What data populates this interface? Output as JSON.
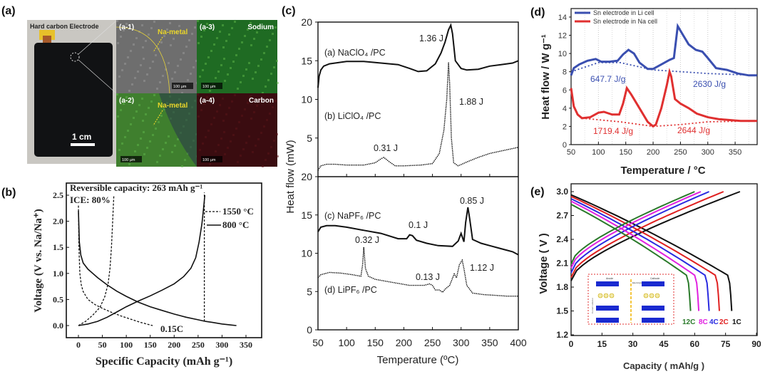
{
  "panel_labels": {
    "a": "(a)",
    "b": "(b)",
    "c": "(c)",
    "d": "(d)",
    "e": "(e)"
  },
  "panel_a": {
    "photo_title": "Hard carbon Electrode",
    "photo_scale": "1 cm",
    "tiles": [
      {
        "label": "(a-1)",
        "title": "",
        "marker": "Na-metal",
        "scale": "100 µm",
        "tone": "#6e6e6e"
      },
      {
        "label": "(a-3)",
        "title": "Sodium",
        "marker": "",
        "scale": "100 µm",
        "tone": "#1f6b23"
      },
      {
        "label": "(a-2)",
        "title": "",
        "marker": "Na-metal",
        "scale": "100 µm",
        "tone": "#3f7f2e"
      },
      {
        "label": "(a-4)",
        "title": "Carbon",
        "marker": "",
        "scale": "100 µm",
        "tone": "#3a0c10"
      }
    ]
  },
  "chart_data": [
    {
      "id": "b",
      "type": "line",
      "title": "",
      "xlabel": "Specific Capacity (mAh g⁻¹)",
      "ylabel": "Voltage (V vs. Na/Na⁺)",
      "xlim": [
        -20,
        385
      ],
      "ylim": [
        -0.25,
        2.75
      ],
      "xticks": [
        0,
        50,
        100,
        150,
        200,
        250,
        300,
        350
      ],
      "yticks": [
        0.0,
        0.5,
        1.0,
        1.5,
        2.0,
        2.5
      ],
      "annotations": [
        "Reversible capacity: 263 mAh g⁻¹",
        "ICE: 80%",
        "0.15C"
      ],
      "legend": [
        "1550 °C",
        "800 °C"
      ],
      "series": [
        {
          "name": "800 °C discharge",
          "style": "solid",
          "x": [
            0,
            2,
            5,
            10,
            20,
            40,
            60,
            80,
            100,
            125,
            150,
            175,
            200,
            225,
            250,
            265,
            280,
            300,
            320,
            330
          ],
          "y": [
            2.2,
            1.6,
            1.35,
            1.2,
            1.08,
            0.92,
            0.78,
            0.66,
            0.56,
            0.45,
            0.36,
            0.29,
            0.22,
            0.16,
            0.11,
            0.08,
            0.06,
            0.03,
            0.01,
            0.0
          ]
        },
        {
          "name": "800 °C charge",
          "style": "solid",
          "x": [
            0,
            20,
            40,
            60,
            80,
            100,
            125,
            150,
            175,
            200,
            220,
            235,
            245,
            252,
            258,
            262,
            264
          ],
          "y": [
            0.0,
            0.03,
            0.08,
            0.16,
            0.26,
            0.36,
            0.47,
            0.57,
            0.68,
            0.8,
            0.94,
            1.1,
            1.3,
            1.6,
            1.95,
            2.3,
            2.5
          ]
        },
        {
          "name": "1550 °C discharge",
          "style": "dashed",
          "x": [
            0,
            1,
            3,
            6,
            10,
            20,
            35,
            50,
            70,
            90,
            110,
            130,
            155
          ],
          "y": [
            2.3,
            1.5,
            1.0,
            0.78,
            0.65,
            0.5,
            0.4,
            0.33,
            0.25,
            0.18,
            0.12,
            0.06,
            0.0
          ]
        },
        {
          "name": "1550 °C charge",
          "style": "dashed",
          "x": [
            0,
            15,
            30,
            45,
            55,
            62,
            66,
            69,
            71,
            73,
            74
          ],
          "y": [
            0.0,
            0.08,
            0.2,
            0.35,
            0.55,
            0.8,
            1.1,
            1.5,
            1.9,
            2.3,
            2.5
          ]
        },
        {
          "name": "1550 °C vertical",
          "style": "dashed",
          "x": [
            263,
            263
          ],
          "y": [
            0.08,
            2.55
          ]
        }
      ]
    },
    {
      "id": "c",
      "type": "line",
      "title": "",
      "xlabel": "Temperature (ºC)",
      "ylabel": "Heat flow (mW)",
      "xlim": [
        50,
        400
      ],
      "xticks": [
        50,
        100,
        150,
        200,
        250,
        300,
        350,
        400
      ],
      "subplots": [
        {
          "ylim": [
            0,
            20
          ],
          "yticks": [
            5,
            10,
            15,
            20
          ],
          "series": [
            {
              "name": "(a) NaClO₄ /PC",
              "style": "solid",
              "x": [
                50,
                52,
                55,
                60,
                70,
                80,
                100,
                130,
                160,
                190,
                210,
                225,
                240,
                255,
                265,
                272,
                278,
                282,
                285,
                290,
                300,
                310,
                330,
                350,
                370,
                390,
                400
              ],
              "y": [
                11.5,
                13.0,
                13.8,
                14.3,
                14.6,
                14.7,
                14.9,
                14.9,
                14.7,
                14.5,
                14.0,
                13.6,
                13.7,
                14.6,
                16.0,
                17.4,
                19.0,
                19.6,
                18.5,
                15.0,
                14.0,
                13.8,
                13.9,
                14.3,
                14.5,
                14.7,
                15.0
              ]
            },
            {
              "name": "(b) LiClO₄ /PC",
              "style": "dotted",
              "x": [
                50,
                55,
                65,
                80,
                100,
                130,
                150,
                160,
                165,
                175,
                185,
                200,
                230,
                250,
                262,
                270,
                275,
                278,
                280,
                283,
                287,
                295,
                310,
                330,
                350,
                375,
                400
              ],
              "y": [
                0.8,
                1.4,
                1.6,
                1.6,
                1.5,
                1.5,
                1.8,
                2.3,
                2.5,
                1.9,
                1.4,
                1.4,
                1.5,
                1.7,
                3.0,
                6.0,
                10.0,
                14.8,
                12.0,
                5.0,
                1.8,
                1.4,
                1.9,
                2.5,
                3.0,
                3.4,
                3.8
              ]
            }
          ],
          "annotations": [
            "1.36 J",
            "1.88 J",
            "0.31 J"
          ]
        },
        {
          "ylim": [
            0,
            20
          ],
          "yticks": [
            0,
            5,
            10,
            15,
            20
          ],
          "series": [
            {
              "name": "(c) NaPF₆ /PC",
              "style": "solid",
              "x": [
                50,
                55,
                65,
                80,
                100,
                130,
                160,
                190,
                205,
                210,
                215,
                222,
                240,
                260,
                285,
                295,
                300,
                305,
                308,
                312,
                315,
                320,
                335,
                350,
                370,
                390,
                400
              ],
              "y": [
                12.8,
                13.4,
                13.6,
                13.6,
                13.4,
                13.0,
                12.6,
                11.9,
                11.9,
                12.4,
                12.3,
                11.7,
                11.3,
                11.0,
                10.9,
                11.6,
                12.6,
                11.5,
                14.0,
                16.0,
                14.5,
                11.8,
                11.3,
                11.0,
                10.6,
                10.2,
                9.8
              ]
            },
            {
              "name": "(d) LiPF₆ /PC",
              "style": "dotted",
              "x": [
                50,
                55,
                70,
                90,
                110,
                125,
                128,
                130,
                133,
                138,
                150,
                180,
                210,
                235,
                245,
                250,
                255,
                262,
                268,
                272,
                280,
                288,
                292,
                297,
                302,
                305,
                310,
                320,
                340,
                360,
                380,
                400
              ],
              "y": [
                6.8,
                7.2,
                7.5,
                7.4,
                7.2,
                7.0,
                8.5,
                10.8,
                8.0,
                7.0,
                6.6,
                6.2,
                5.8,
                5.8,
                6.0,
                5.8,
                5.2,
                5.2,
                4.9,
                5.3,
                5.8,
                7.3,
                6.8,
                8.5,
                9.1,
                8.0,
                5.8,
                4.8,
                4.6,
                4.5,
                4.4,
                4.4
              ]
            }
          ],
          "annotations": [
            "0.85 J",
            "0.1 J",
            "0.32 J",
            "0.13 J",
            "1.12 J"
          ]
        }
      ]
    },
    {
      "id": "d",
      "type": "line",
      "title": "",
      "xlabel": "Temperature / °C",
      "ylabel": "Heat flow / W g⁻¹",
      "xlim": [
        50,
        390
      ],
      "ylim": [
        0,
        15
      ],
      "xticks": [
        50,
        100,
        150,
        200,
        250,
        300,
        350
      ],
      "yticks": [
        0,
        2,
        4,
        6,
        8,
        10,
        12,
        14
      ],
      "grid": "vertical dotted",
      "legend_position": "top-left",
      "legend": [
        "Sn electrode in Li cell",
        "Sn electrode in Na cell"
      ],
      "series": [
        {
          "name": "Sn electrode in Li cell",
          "color": "#3a4fb0",
          "style": "solid",
          "x": [
            50,
            55,
            65,
            80,
            95,
            105,
            120,
            135,
            145,
            155,
            165,
            175,
            190,
            200,
            215,
            230,
            238,
            245,
            255,
            265,
            278,
            290,
            300,
            315,
            335,
            355,
            375,
            390
          ],
          "y": [
            7.6,
            8.4,
            8.8,
            9.2,
            9.4,
            9.1,
            9.1,
            9.2,
            9.9,
            10.4,
            10.0,
            9.0,
            8.3,
            8.3,
            8.8,
            9.3,
            9.5,
            13.0,
            12.0,
            11.0,
            10.4,
            10.2,
            9.5,
            8.4,
            8.2,
            7.8,
            7.6,
            7.6
          ]
        },
        {
          "name": "Li baseline",
          "color": "#3a4fb0",
          "style": "dotted",
          "x": [
            50,
            100,
            140,
            200,
            300,
            390
          ],
          "y": [
            8.0,
            9.0,
            9.0,
            8.2,
            7.8,
            7.6
          ]
        },
        {
          "name": "Sn electrode in Na cell",
          "color": "#e03030",
          "style": "solid",
          "x": [
            50,
            55,
            62,
            70,
            85,
            100,
            110,
            125,
            138,
            145,
            152,
            160,
            175,
            190,
            200,
            205,
            215,
            225,
            230,
            233,
            240,
            250,
            265,
            280,
            300,
            320,
            340,
            360,
            390
          ],
          "y": [
            6.2,
            4.2,
            3.3,
            2.9,
            3.0,
            3.5,
            3.6,
            3.3,
            3.3,
            4.5,
            6.2,
            5.5,
            4.0,
            2.5,
            2.0,
            2.2,
            4.0,
            6.5,
            8.0,
            7.5,
            5.0,
            4.5,
            4.0,
            3.4,
            3.0,
            2.8,
            2.7,
            2.6,
            2.6
          ]
        },
        {
          "name": "Na baseline",
          "color": "#e03030",
          "style": "dotted",
          "x": [
            70,
            140,
            200,
            250,
            300,
            390
          ],
          "y": [
            2.9,
            2.5,
            2.0,
            2.2,
            2.5,
            2.6
          ]
        }
      ],
      "annotations": [
        "647.7 J/g",
        "2630 J/g",
        "1719.4 J/g",
        "2644 J/g"
      ]
    },
    {
      "id": "e",
      "type": "line",
      "title": "",
      "xlabel": "Capacity ( mAh/g )",
      "ylabel": "Voltage ( V )",
      "xlim": [
        0,
        90
      ],
      "ylim": [
        1.2,
        3.1
      ],
      "xticks": [
        0,
        15,
        30,
        45,
        60,
        75,
        90
      ],
      "yticks": [
        1.2,
        1.5,
        1.8,
        2.1,
        2.4,
        2.7,
        3.0
      ],
      "legend": [
        "12C",
        "8C",
        "4C",
        "2C",
        "1C"
      ],
      "series": [
        {
          "name": "1C",
          "color": "#111111",
          "charge_end": 82,
          "charge_start_v": 1.88,
          "discharge_start_v": 2.96,
          "discharge_end": 78
        },
        {
          "name": "2C",
          "color": "#e02020",
          "charge_end": 74,
          "charge_start_v": 1.92,
          "discharge_start_v": 2.94,
          "discharge_end": 72
        },
        {
          "name": "4C",
          "color": "#2a2ae0",
          "charge_end": 67,
          "charge_start_v": 1.98,
          "discharge_start_v": 2.91,
          "discharge_end": 67
        },
        {
          "name": "8C",
          "color": "#e020e0",
          "charge_end": 63,
          "charge_start_v": 2.04,
          "discharge_start_v": 2.88,
          "discharge_end": 62
        },
        {
          "name": "12C",
          "color": "#2a7a2a",
          "charge_end": 60,
          "charge_start_v": 2.09,
          "discharge_start_v": 2.84,
          "discharge_end": 58
        }
      ],
      "inset": {
        "anode": "Anode",
        "cathode": "Cathode",
        "electrolyte": "Electrolyte",
        "current_collector": "Current collector"
      }
    }
  ]
}
